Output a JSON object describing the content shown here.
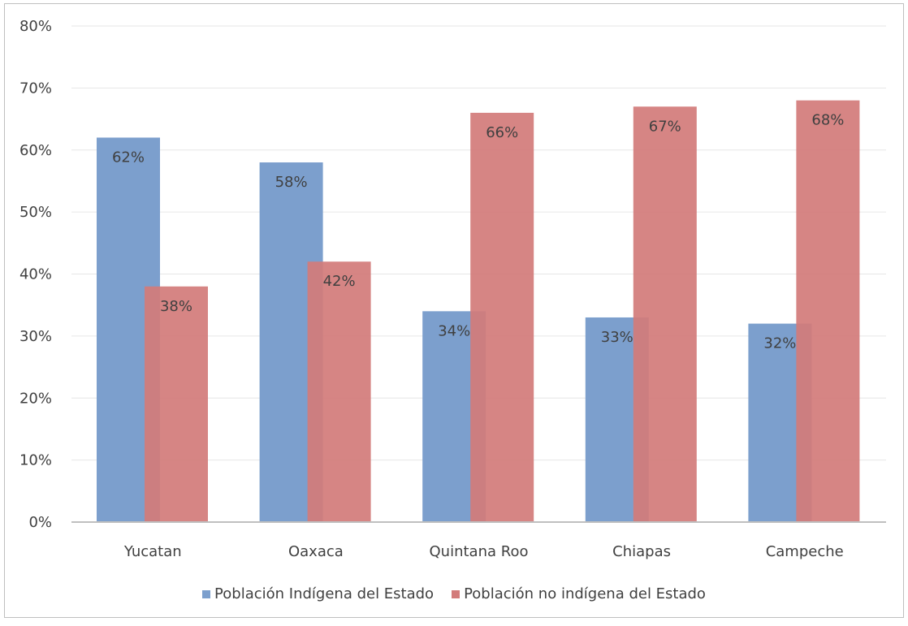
{
  "chart_data": {
    "type": "bar",
    "categories": [
      "Yucatan",
      "Oaxaca",
      "Quintana Roo",
      "Chiapas",
      "Campeche"
    ],
    "series": [
      {
        "name": "Población Indígena del Estado",
        "color": "#7c9fcd",
        "values": [
          62,
          58,
          34,
          33,
          32
        ],
        "labels": [
          "62%",
          "58%",
          "34%",
          "33%",
          "32%"
        ]
      },
      {
        "name": "Población no indígena del Estado",
        "color": "#d27b7a",
        "values": [
          38,
          42,
          66,
          67,
          68
        ],
        "labels": [
          "38%",
          "42%",
          "66%",
          "67%",
          "68%"
        ]
      }
    ],
    "ylim": [
      0,
      80
    ],
    "yticks": [
      0,
      10,
      20,
      30,
      40,
      50,
      60,
      70,
      80
    ],
    "ytick_labels": [
      "0%",
      "10%",
      "20%",
      "30%",
      "40%",
      "50%",
      "60%",
      "70%",
      "80%"
    ],
    "title": "",
    "xlabel": "",
    "ylabel": "",
    "grid": true,
    "legend_position": "bottom",
    "bar_overlap": true,
    "gridline_color": "#e6e6e6",
    "axis_color": "#bfbfbf"
  }
}
